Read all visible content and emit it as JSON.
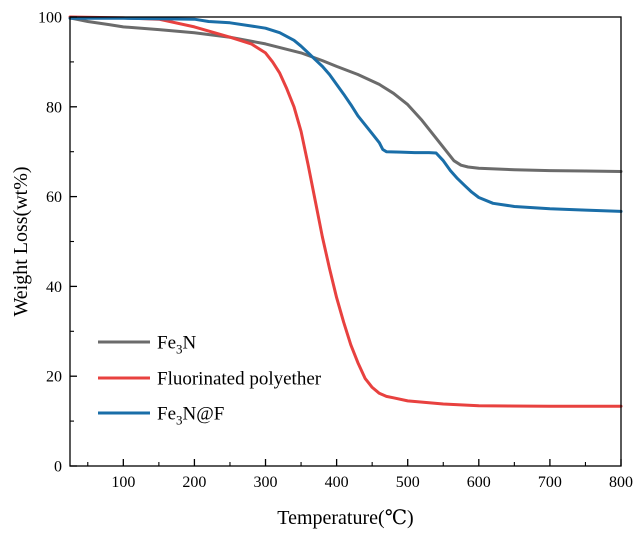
{
  "chart_data": {
    "type": "line",
    "title": "",
    "xlabel": "Temperature(℃)",
    "ylabel": "Weight Loss(wt%)",
    "xlim": [
      25,
      800
    ],
    "ylim": [
      0,
      100
    ],
    "x_ticks": [
      100,
      200,
      300,
      400,
      500,
      600,
      700,
      800
    ],
    "x_tick_labels": [
      "100",
      "200",
      "300",
      "400",
      "500",
      "600",
      "700",
      "800"
    ],
    "y_ticks": [
      0,
      20,
      40,
      60,
      80,
      100
    ],
    "y_tick_labels": [
      "0",
      "20",
      "40",
      "60",
      "80",
      "100"
    ],
    "grid": false,
    "legend_position": "bottom-left",
    "series": [
      {
        "name": "Fe3N",
        "legend_main": "Fe",
        "legend_sub": "3",
        "legend_tail": "N",
        "color": "#6b6b6b",
        "x": [
          25,
          50,
          80,
          100,
          150,
          200,
          250,
          300,
          350,
          380,
          400,
          430,
          460,
          480,
          500,
          520,
          540,
          555,
          565,
          575,
          585,
          600,
          650,
          700,
          750,
          800
        ],
        "y": [
          99.8,
          99.0,
          98.3,
          97.8,
          97.2,
          96.5,
          95.5,
          94.0,
          92.0,
          90.3,
          89.0,
          87.2,
          85.0,
          83.0,
          80.5,
          77.0,
          73.0,
          70.0,
          68.0,
          67.0,
          66.6,
          66.3,
          66.0,
          65.8,
          65.7,
          65.6
        ]
      },
      {
        "name": "Fluorinated polyether",
        "legend_main": "Fluorinated polyether",
        "legend_sub": "",
        "legend_tail": "",
        "color": "#e8413f",
        "x": [
          25,
          100,
          150,
          200,
          250,
          280,
          300,
          310,
          320,
          330,
          340,
          350,
          360,
          370,
          380,
          390,
          400,
          410,
          420,
          430,
          440,
          450,
          460,
          470,
          480,
          500,
          550,
          600,
          700,
          800
        ],
        "y": [
          100,
          99.8,
          99.5,
          97.8,
          95.5,
          94.0,
          92.0,
          90.0,
          87.5,
          84.0,
          80.0,
          74.5,
          67.0,
          59.0,
          51.0,
          44.0,
          37.5,
          32.0,
          27.0,
          23.0,
          19.5,
          17.5,
          16.2,
          15.5,
          15.2,
          14.5,
          13.8,
          13.4,
          13.3,
          13.3
        ]
      },
      {
        "name": "Fe3N@F",
        "legend_main": "Fe",
        "legend_sub": "3",
        "legend_tail": "N@F",
        "color": "#1a6ea8",
        "x": [
          25,
          100,
          150,
          200,
          220,
          250,
          280,
          300,
          320,
          340,
          350,
          360,
          370,
          380,
          390,
          400,
          410,
          420,
          430,
          440,
          450,
          460,
          465,
          470,
          490,
          510,
          530,
          540,
          550,
          560,
          570,
          580,
          590,
          600,
          620,
          650,
          700,
          750,
          800
        ],
        "y": [
          99.7,
          99.7,
          99.6,
          99.5,
          99.0,
          98.7,
          98.0,
          97.5,
          96.5,
          94.8,
          93.5,
          92.0,
          90.5,
          89.0,
          87.2,
          85.0,
          82.8,
          80.5,
          78.0,
          76.0,
          74.0,
          72.0,
          70.5,
          70.0,
          69.9,
          69.8,
          69.8,
          69.7,
          68.0,
          65.8,
          64.0,
          62.5,
          61.0,
          59.8,
          58.5,
          57.8,
          57.3,
          57.0,
          56.7
        ]
      }
    ]
  }
}
